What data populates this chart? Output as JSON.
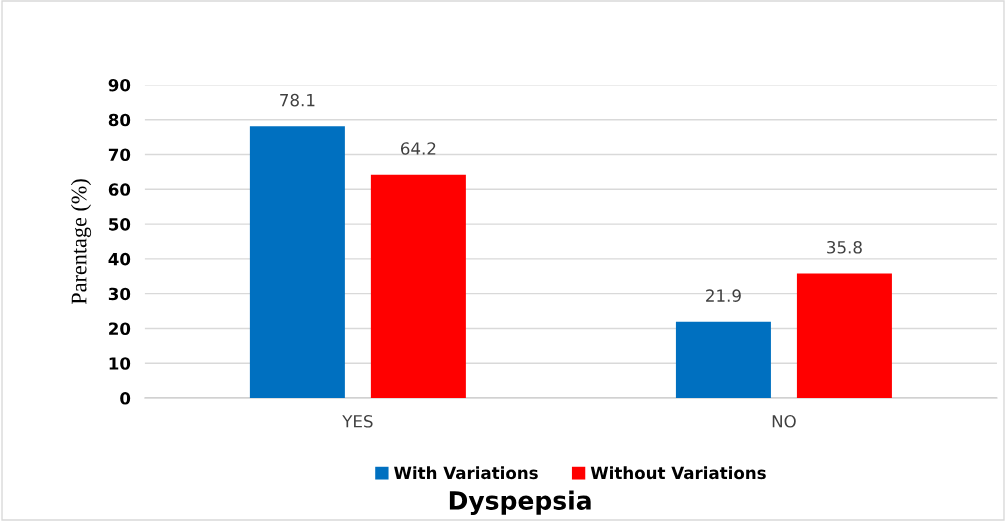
{
  "chart_data": {
    "type": "bar",
    "title": "Dyspepsia",
    "ylabel": "Parentage (%)",
    "categories": [
      "YES",
      "NO"
    ],
    "series": [
      {
        "name": "With Variations",
        "color": "#0070c0",
        "values": [
          78.1,
          21.9
        ]
      },
      {
        "name": "Without Variations",
        "color": "#ff0000",
        "values": [
          64.2,
          35.8
        ]
      }
    ],
    "ylim": [
      0,
      90
    ],
    "yticks": [
      0,
      10,
      20,
      30,
      40,
      50,
      60,
      70,
      80,
      90
    ],
    "grid": "y",
    "legend": "bottom",
    "data_labels": true
  }
}
